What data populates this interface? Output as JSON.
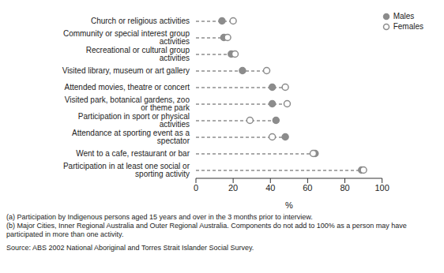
{
  "chart_data": {
    "type": "dot",
    "orientation": "horizontal",
    "x_label": "%",
    "categories": [
      "Church or religious activities",
      "Community or special interest group activities",
      "Recreational or cultural group activities",
      "Visited library, museum or art gallery",
      "Attended movies, theatre or concert",
      "Visited park, botanical gardens, zoo or theme park",
      "Participation in sport or physical activities",
      "Attendance at sporting event as a spectator",
      "Went to a cafe, restaurant or bar",
      "Participation in at least one social or sporting activity"
    ],
    "series": [
      {
        "name": "Males",
        "color": "#8c8c8c",
        "marker": "circle",
        "values": [
          14,
          15,
          19,
          25,
          41,
          41,
          43,
          48,
          64,
          89
        ]
      },
      {
        "name": "Females",
        "color": "#8c8c8c",
        "marker": "open_circle",
        "values": [
          20,
          17,
          21,
          38,
          48,
          49,
          29,
          41,
          63,
          90
        ]
      }
    ],
    "line_style": "dashed",
    "xlim": [
      0,
      100
    ],
    "xticks": [
      0,
      20,
      40,
      60,
      80,
      100
    ],
    "grid": false,
    "legend": "top right",
    "annotations": [
      "(a) Participation by Indigenous persons aged 15 years and over in the 3 months prior to interview.",
      "(b) Major Cities, Inner Regional Australia and Outer Regional Australia. Components do not add to 100% as a person may have participated in more than one activity.",
      "Source: ABS 2002 National Aboriginal and Torres Strait Islander Social Survey."
    ]
  }
}
